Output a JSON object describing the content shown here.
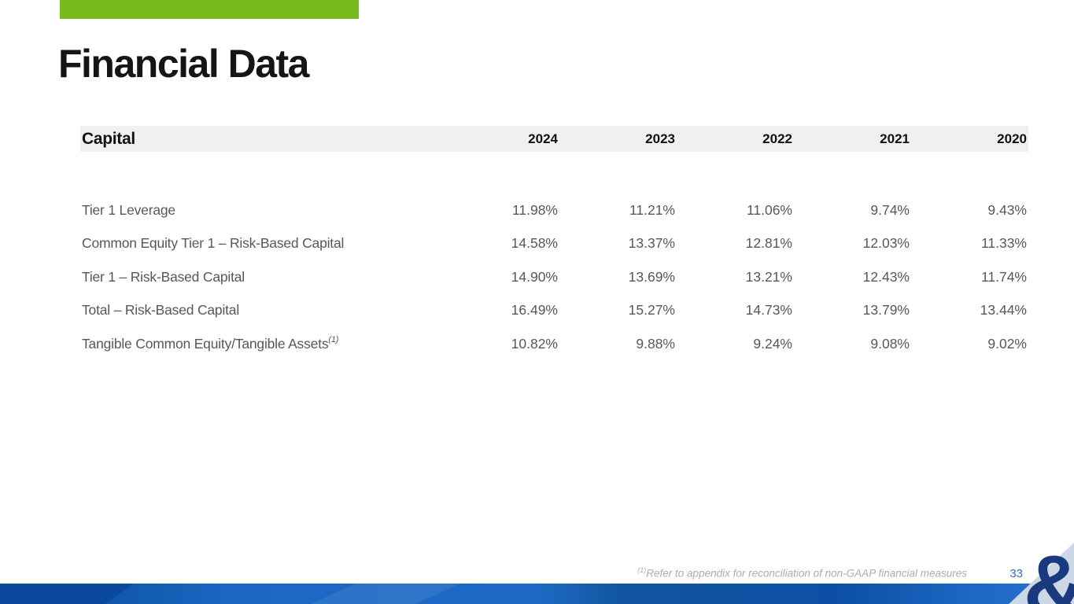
{
  "slide": {
    "title": "Financial Data",
    "accent_green": "#77BC1F",
    "brand_navy": "#1A3A80",
    "band_blue": "#1B67C2",
    "page_number_color": "#2E6FC0"
  },
  "table": {
    "header": "Capital",
    "years": [
      "2024",
      "2023",
      "2022",
      "2021",
      "2020"
    ],
    "rows": [
      {
        "label": "Tier 1 Leverage",
        "sup": "",
        "values": [
          "11.98%",
          "11.21%",
          "11.06%",
          "9.74%",
          "9.43%"
        ]
      },
      {
        "label": "Common Equity Tier 1 – Risk-Based Capital",
        "sup": "",
        "values": [
          "14.58%",
          "13.37%",
          "12.81%",
          "12.03%",
          "11.33%"
        ]
      },
      {
        "label": "Tier 1 – Risk-Based Capital",
        "sup": "",
        "values": [
          "14.90%",
          "13.69%",
          "13.21%",
          "12.43%",
          "11.74%"
        ]
      },
      {
        "label": "Total – Risk-Based Capital",
        "sup": "",
        "values": [
          "16.49%",
          "15.27%",
          "14.73%",
          "13.79%",
          "13.44%"
        ]
      },
      {
        "label": "Tangible Common Equity/Tangible Assets",
        "sup": "(1)",
        "values": [
          "10.82%",
          "9.88%",
          "9.24%",
          "9.08%",
          "9.02%"
        ]
      }
    ]
  },
  "footnote": {
    "sup": "(1)",
    "text": "Refer to appendix for reconciliation of non-GAAP financial measures"
  },
  "footer": {
    "page": "33",
    "logo_glyph": "&"
  }
}
